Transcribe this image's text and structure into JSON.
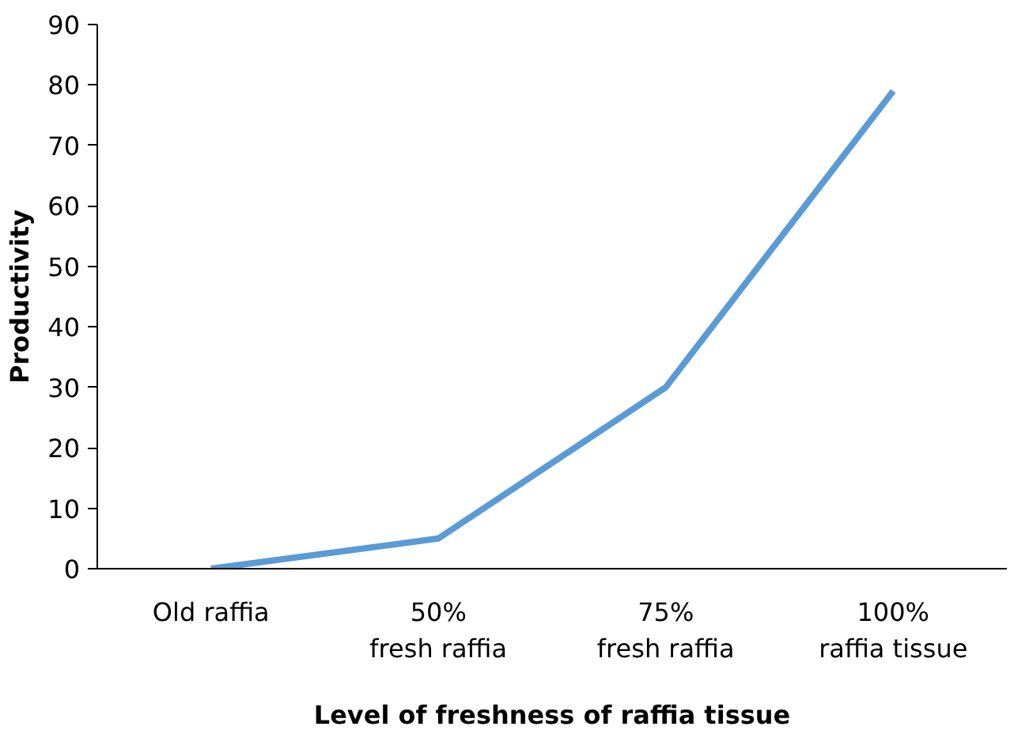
{
  "chart_data": {
    "type": "line",
    "xlabel": "Level of freshness of raffia tissue",
    "ylabel": "Productivity",
    "categories": [
      "Old raffia",
      "50%\nfresh raffia",
      "75%\nfresh raffia",
      "100%\nraffia tissue"
    ],
    "series": [
      {
        "color": "#5b9bd5",
        "values": [
          0,
          5,
          30,
          79
        ]
      }
    ],
    "ylim": [
      0,
      90
    ],
    "yticks": [
      0,
      10,
      20,
      30,
      40,
      50,
      60,
      70,
      80,
      90
    ],
    "grid": false,
    "marker": "none",
    "line_style": "solid"
  }
}
